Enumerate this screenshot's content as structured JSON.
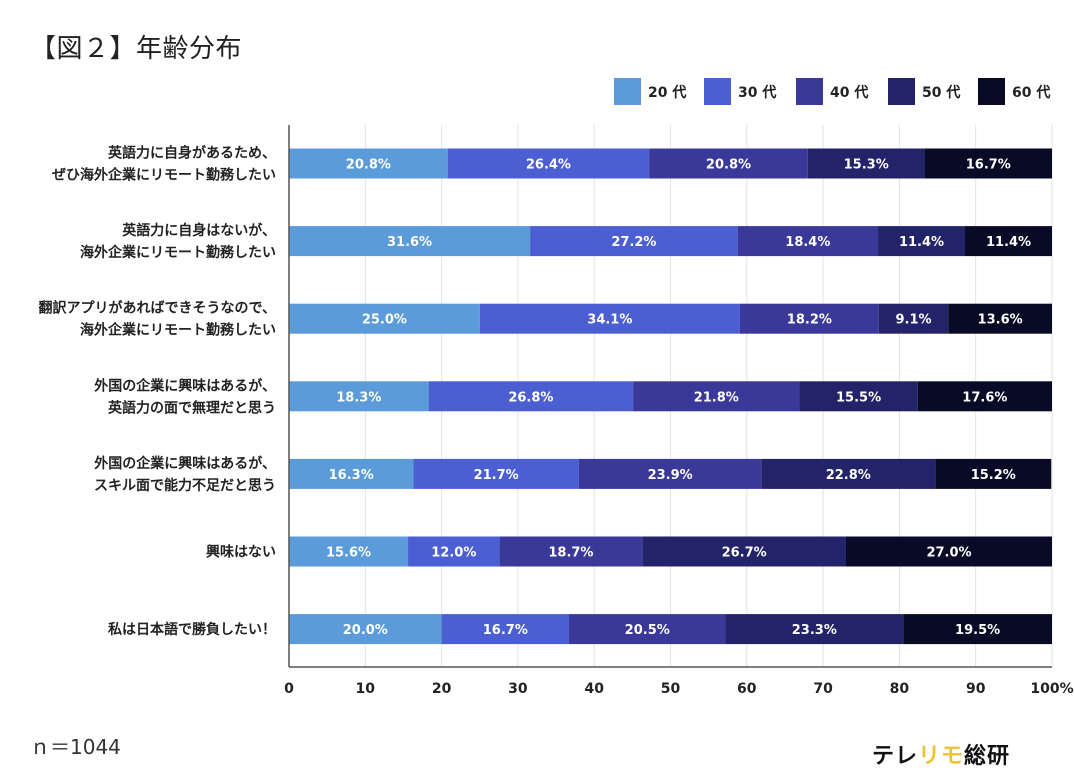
{
  "figure_title": "【図２】年齢分布",
  "sample_size": "ｎ＝1044",
  "brand": {
    "part1": "テレ",
    "part2": "リモ",
    "part3": "総研"
  },
  "colors": {
    "20代": "#5b9bd9",
    "30代": "#4c5fd2",
    "40代": "#3a3899",
    "50代": "#23236a",
    "60代": "#090b26",
    "axis": "#555555",
    "grid": "#e3e3e3",
    "label_text": "#ffffff",
    "brand_accent": "#f2c12e"
  },
  "chart_data": {
    "type": "bar",
    "orientation": "horizontal",
    "stacked": true,
    "title": "",
    "xlabel": "",
    "ylabel": "",
    "xlim": [
      0,
      100
    ],
    "x_ticks": [
      "0",
      "10",
      "20",
      "30",
      "40",
      "50",
      "60",
      "70",
      "80",
      "90",
      "100%"
    ],
    "grid": true,
    "legend_position": "top-right",
    "categories": [
      [
        "英語力に自身があるため、",
        "ぜひ海外企業にリモート勤務したい"
      ],
      [
        "英語力に自身はないが、",
        "海外企業にリモート勤務したい"
      ],
      [
        "翻訳アプリがあればできそうなので、",
        "海外企業にリモート勤務したい"
      ],
      [
        "外国の企業に興味はあるが、",
        "英語力の面で無理だと思う"
      ],
      [
        "外国の企業に興味はあるが、",
        "スキル面で能力不足だと思う"
      ],
      [
        "興味はない"
      ],
      [
        "私は日本語で勝負したい！"
      ]
    ],
    "series": [
      {
        "name": "20代",
        "legend_label": "20 代",
        "values": [
          20.8,
          31.6,
          25.0,
          18.3,
          16.3,
          15.6,
          20.0
        ]
      },
      {
        "name": "30代",
        "legend_label": "30 代",
        "values": [
          26.4,
          27.2,
          34.1,
          26.8,
          21.7,
          12.0,
          16.7
        ]
      },
      {
        "name": "40代",
        "legend_label": "40 代",
        "values": [
          20.8,
          18.4,
          18.2,
          21.8,
          23.9,
          18.7,
          20.5
        ]
      },
      {
        "name": "50代",
        "legend_label": "50 代",
        "values": [
          15.3,
          11.4,
          9.1,
          15.5,
          22.8,
          26.7,
          23.3
        ]
      },
      {
        "name": "60代",
        "legend_label": "60 代",
        "values": [
          16.7,
          11.4,
          13.6,
          17.6,
          15.2,
          27.0,
          19.5
        ]
      }
    ]
  }
}
